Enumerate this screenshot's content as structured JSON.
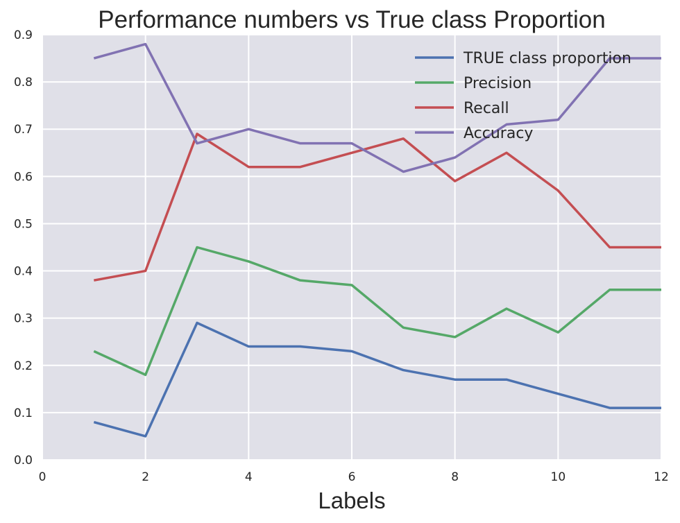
{
  "chart_data": {
    "type": "line",
    "title": "Performance numbers vs True class Proportion",
    "xlabel": "Labels",
    "ylabel": "",
    "xlim": [
      0,
      12
    ],
    "ylim": [
      0,
      0.9
    ],
    "x_ticks": [
      "0",
      "2",
      "4",
      "6",
      "8",
      "10",
      "12"
    ],
    "y_ticks": [
      "0.0",
      "0.1",
      "0.2",
      "0.3",
      "0.4",
      "0.5",
      "0.6",
      "0.7",
      "0.8",
      "0.9"
    ],
    "grid": true,
    "legend_position": "top-right",
    "background": "#e0e0e8",
    "x": [
      1,
      2,
      3,
      4,
      5,
      6,
      7,
      8,
      9,
      10,
      11,
      12
    ],
    "series": [
      {
        "name": "TRUE class proportion",
        "color": "#4c72b0",
        "values": [
          0.08,
          0.05,
          0.29,
          0.24,
          0.24,
          0.23,
          0.19,
          0.17,
          0.17,
          0.14,
          0.11,
          0.11
        ]
      },
      {
        "name": "Precision",
        "color": "#55a868",
        "values": [
          0.23,
          0.18,
          0.45,
          0.42,
          0.38,
          0.37,
          0.28,
          0.26,
          0.32,
          0.27,
          0.36,
          0.36
        ]
      },
      {
        "name": "Recall",
        "color": "#c44e52",
        "values": [
          0.38,
          0.4,
          0.69,
          0.62,
          0.62,
          0.65,
          0.68,
          0.59,
          0.65,
          0.57,
          0.45,
          0.45
        ]
      },
      {
        "name": "Accuracy",
        "color": "#8172b2",
        "values": [
          0.85,
          0.88,
          0.67,
          0.7,
          0.67,
          0.67,
          0.61,
          0.64,
          0.71,
          0.72,
          0.85,
          0.85
        ]
      }
    ]
  }
}
